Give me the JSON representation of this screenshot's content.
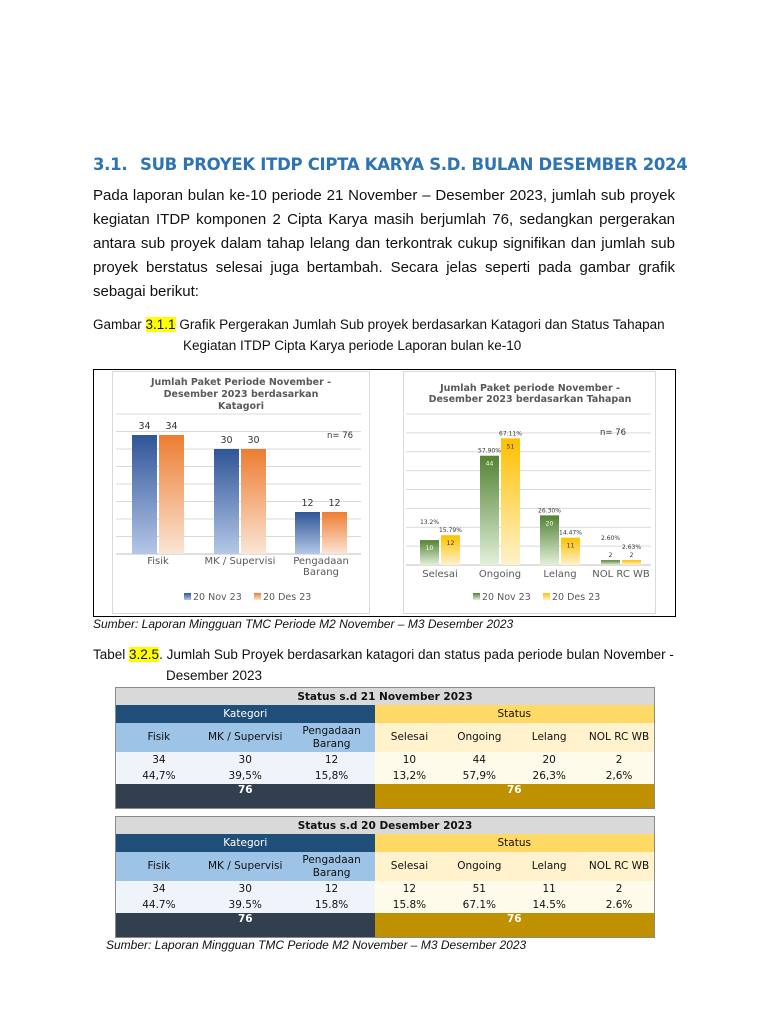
{
  "heading": {
    "number": "3.1.",
    "title": "SUB PROYEK ITDP CIPTA KARYA S.D. BULAN DESEMBER 2024"
  },
  "paragraph": "Pada laporan bulan ke-10 periode 21 November – Desember 2023, jumlah sub proyek kegiatan ITDP komponen 2 Cipta Karya masih berjumlah 76, sedangkan pergerakan antara sub proyek dalam tahap lelang dan terkontrak cukup signifikan dan jumlah sub proyek berstatus selesai juga bertambah. Secara jelas seperti pada gambar grafik sebagai berikut:",
  "figure_caption": {
    "prefix": "Gambar ",
    "ref": "3.1.1",
    "line1": " Grafik Pergerakan Jumlah Sub proyek berdasarkan Katagori dan Status Tahapan",
    "line2": "Kegiatan ITDP Cipta Karya periode Laporan bulan ke-10"
  },
  "figure_source": "Sumber: Laporan Mingguan TMC Periode M2 November – M3 Desember 2023",
  "table_caption": {
    "prefix": "Tabel ",
    "ref": "3.2.5",
    "line1": ". Jumlah Sub Proyek berdasarkan katagori dan status pada periode bulan November -",
    "line2": "Desember 2023"
  },
  "table_source": "Sumber: Laporan Mingguan TMC Periode M2 November – M3 Desember 2023",
  "chart_data": [
    {
      "type": "bar",
      "title": "Jumlah Paket Periode November - Desember 2023  berdasarkan Katagori",
      "title_lines": [
        "Jumlah Paket Periode November -",
        "Desember 2023  berdasarkan",
        "Katagori"
      ],
      "categories": [
        [
          "Fisik"
        ],
        [
          "MK / Supervisi"
        ],
        [
          "Pengadaan",
          "Barang"
        ]
      ],
      "series": [
        {
          "name": "20 Nov 23",
          "values": [
            34,
            30,
            12
          ],
          "color": "#2F5597",
          "color_light": "#B4C7E7"
        },
        {
          "name": "20 Des 23",
          "values": [
            34,
            30,
            12
          ],
          "color": "#ED7D31",
          "color_light": "#FBE5D6"
        }
      ],
      "annotation": "n= 76",
      "ylim": [
        0,
        40
      ],
      "grid": true,
      "legend": "bottom"
    },
    {
      "type": "bar",
      "title": "Jumlah Paket  periode November - Desember 2023 berdasarkan Tahapan",
      "title_lines": [
        "Jumlah Paket  periode November -",
        "Desember 2023 berdasarkan Tahapan"
      ],
      "categories": [
        [
          "Selesai"
        ],
        [
          "Ongoing"
        ],
        [
          "Lelang"
        ],
        [
          "NOL RC WB"
        ]
      ],
      "series": [
        {
          "name": "20 Nov 23",
          "values": [
            10,
            44,
            20,
            2
          ],
          "percent": [
            0.132,
            0.579,
            0.263,
            0.026
          ],
          "percent_labels": [
            "13.2%",
            "57.90%",
            "26.30%",
            "2.60%"
          ],
          "color": "#548235",
          "color_light": "#E2F0D9"
        },
        {
          "name": "20 Des 23",
          "values": [
            12,
            51,
            11,
            2
          ],
          "percent": [
            0.1579,
            0.6711,
            0.1447,
            0.0263
          ],
          "percent_labels": [
            "15.79%",
            "67.11%",
            "14.47%",
            "2.63%"
          ],
          "color": "#FFC000",
          "color_light": "#FFF2CC"
        }
      ],
      "annotation": "n= 76",
      "ylim": [
        0,
        0.8
      ],
      "grid": true,
      "legend": "bottom"
    }
  ],
  "tables": [
    {
      "title": "Status s.d 21 November 2023",
      "group_kategori": "Kategori",
      "group_status": "Status",
      "headers": [
        "Fisik",
        "MK / Supervisi",
        "Pengadaan Barang",
        "Selesai",
        "Ongoing",
        "Lelang",
        "NOL RC WB"
      ],
      "counts": [
        "34",
        "30",
        "12",
        "10",
        "44",
        "20",
        "2"
      ],
      "percents": [
        "44,7%",
        "39,5%",
        "15,8%",
        "13,2%",
        "57,9%",
        "26,3%",
        "2,6%"
      ],
      "total_kategori": "76",
      "total_status": "76"
    },
    {
      "title": "Status s.d 20 Desember 2023",
      "group_kategori": "Kategori",
      "group_status": "Status",
      "headers": [
        "Fisik",
        "MK / Supervisi",
        "Pengadaan Barang",
        "Selesai",
        "Ongoing",
        "Lelang",
        "NOL RC WB"
      ],
      "counts": [
        "34",
        "30",
        "12",
        "12",
        "51",
        "11",
        "2"
      ],
      "percents": [
        "44.7%",
        "39.5%",
        "15.8%",
        "15.8%",
        "67.1%",
        "14.5%",
        "2.6%"
      ],
      "total_kategori": "76",
      "total_status": "76"
    }
  ]
}
